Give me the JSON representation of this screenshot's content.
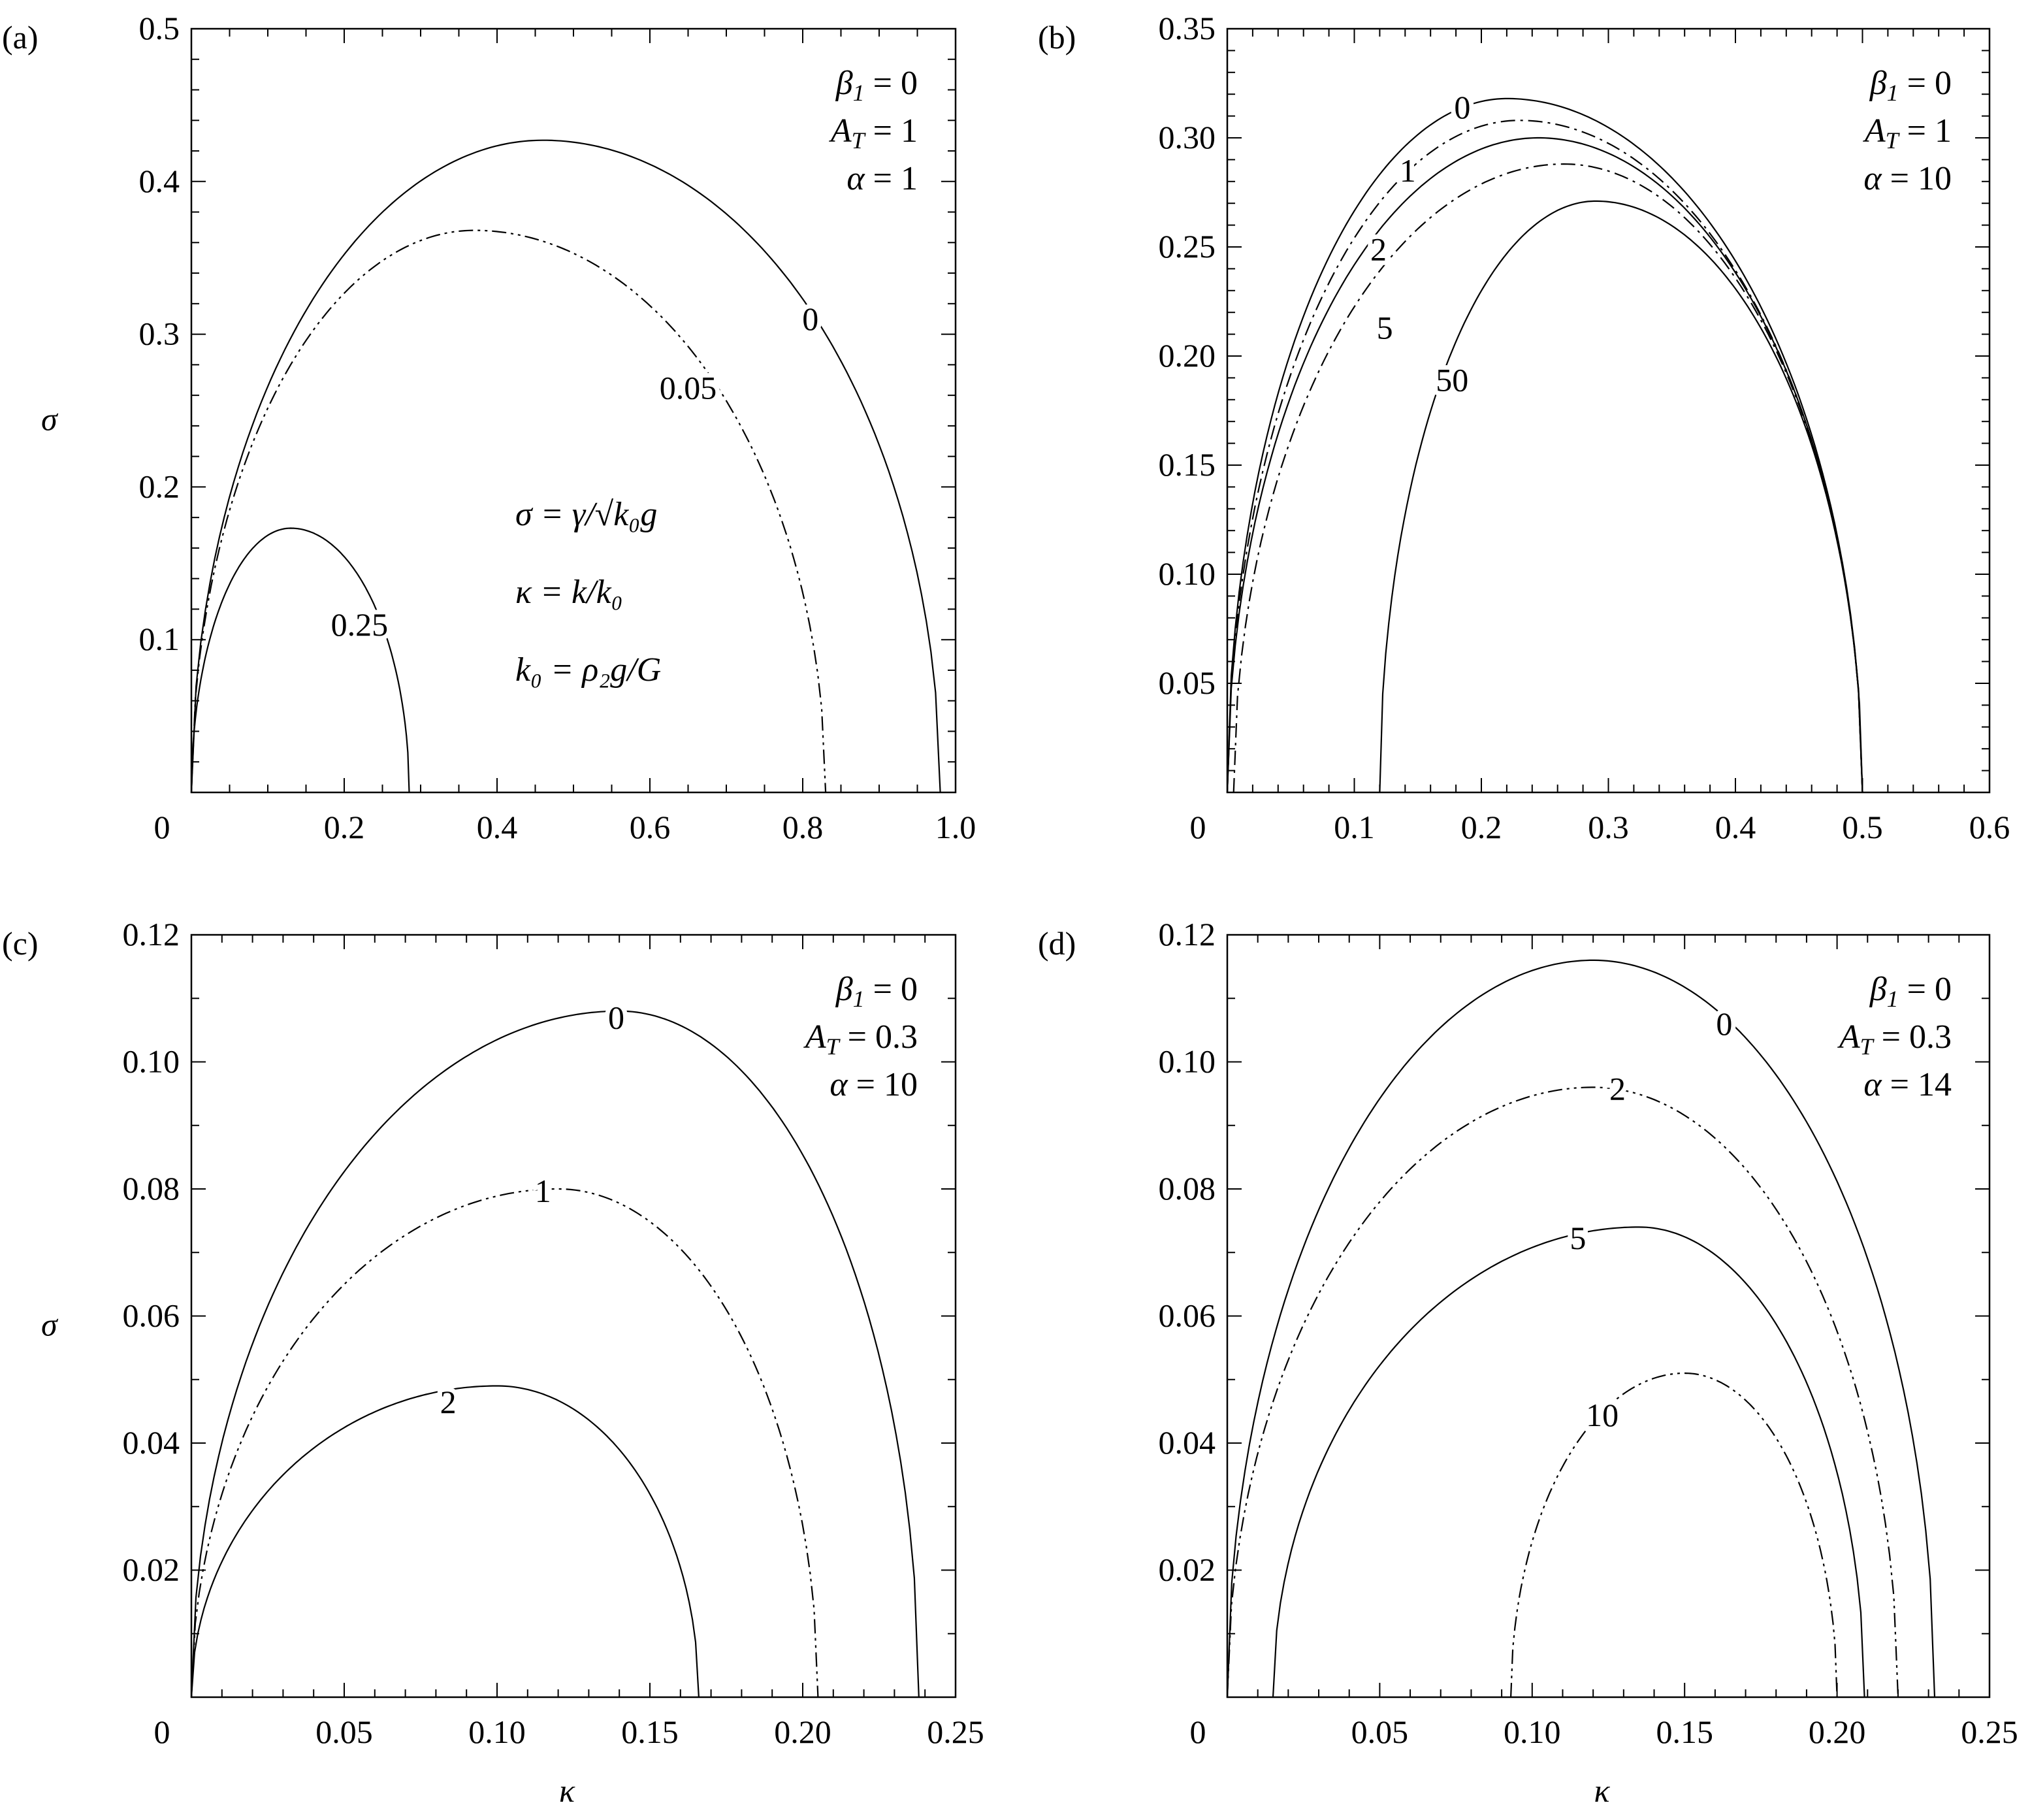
{
  "chart_data": [
    {
      "type": "line",
      "panel_label": "(a)",
      "xlabel": "",
      "ylabel": "σ",
      "xlim": [
        0,
        1.0
      ],
      "ylim": [
        0,
        0.5
      ],
      "xticks": [
        "0",
        "0.2",
        "0.4",
        "0.6",
        "0.8",
        "1.0"
      ],
      "xtick_values": [
        0,
        0.2,
        0.4,
        0.6,
        0.8,
        1.0
      ],
      "xminor": 0.05,
      "yticks": [
        "0.1",
        "0.2",
        "0.3",
        "0.4",
        "0.5"
      ],
      "ytick_values": [
        0.1,
        0.2,
        0.3,
        0.4,
        0.5
      ],
      "yminor": 0.02,
      "params": [
        {
          "sym": "β",
          "sub": "1",
          "rest": " = 0"
        },
        {
          "sym": "A",
          "sub": "T",
          "rest": " = 1"
        },
        {
          "sym": "α",
          "sub": "",
          "rest": " = 1"
        }
      ],
      "formulas": [
        "σ = γ/√k₀g",
        "κ = k/k₀",
        "k₀ = ρ₂g/G"
      ],
      "series": [
        {
          "name": "0",
          "style": "solid",
          "start": 0,
          "peak": [
            0.46,
            0.427
          ],
          "end": 0.98,
          "label_at": [
            0.81,
            0.31
          ]
        },
        {
          "name": "0.05",
          "style": "dashdotdot",
          "start": 0,
          "peak": [
            0.37,
            0.368
          ],
          "end": 0.83,
          "label_at": [
            0.65,
            0.265
          ]
        },
        {
          "name": "0.25",
          "style": "solid",
          "start": 0,
          "peak": [
            0.13,
            0.173
          ],
          "end": 0.285,
          "label_at": [
            0.22,
            0.11
          ]
        }
      ]
    },
    {
      "type": "line",
      "panel_label": "(b)",
      "xlabel": "",
      "ylabel": "",
      "xlim": [
        0,
        0.6
      ],
      "ylim": [
        0,
        0.35
      ],
      "xticks": [
        "0",
        "0.1",
        "0.2",
        "0.3",
        "0.4",
        "0.5",
        "0.6"
      ],
      "xtick_values": [
        0,
        0.1,
        0.2,
        0.3,
        0.4,
        0.5,
        0.6
      ],
      "xminor": 0.02,
      "yticks": [
        "0.05",
        "0.10",
        "0.15",
        "0.20",
        "0.25",
        "0.30",
        "0.35"
      ],
      "ytick_values": [
        0.05,
        0.1,
        0.15,
        0.2,
        0.25,
        0.3,
        0.35
      ],
      "yminor": 0.01,
      "params": [
        {
          "sym": "β",
          "sub": "1",
          "rest": " = 0"
        },
        {
          "sym": "A",
          "sub": "T",
          "rest": " = 1"
        },
        {
          "sym": "α",
          "sub": "",
          "rest": " = 10"
        }
      ],
      "formulas": [],
      "series": [
        {
          "name": "0",
          "style": "solid",
          "start": 0,
          "peak": [
            0.22,
            0.318
          ],
          "end": 0.5,
          "label_at": [
            0.185,
            0.314
          ]
        },
        {
          "name": "1",
          "style": "dashdot",
          "start": 0,
          "peak": [
            0.23,
            0.308
          ],
          "end": 0.5,
          "label_at": [
            0.142,
            0.285
          ]
        },
        {
          "name": "2",
          "style": "solid",
          "start": 0,
          "peak": [
            0.245,
            0.3
          ],
          "end": 0.5,
          "label_at": [
            0.119,
            0.249
          ]
        },
        {
          "name": "5",
          "style": "dashdot",
          "start": 0.005,
          "peak": [
            0.265,
            0.288
          ],
          "end": 0.5,
          "label_at": [
            0.124,
            0.213
          ]
        },
        {
          "name": "50",
          "style": "solid",
          "start": 0.12,
          "peak": [
            0.29,
            0.271
          ],
          "end": 0.5,
          "label_at": [
            0.177,
            0.189
          ]
        }
      ]
    },
    {
      "type": "line",
      "panel_label": "(c)",
      "xlabel": "κ",
      "ylabel": "σ",
      "xlim": [
        0,
        0.25
      ],
      "ylim": [
        0,
        0.12
      ],
      "xticks": [
        "0",
        "0.05",
        "0.10",
        "0.15",
        "0.20",
        "0.25"
      ],
      "xtick_values": [
        0,
        0.05,
        0.1,
        0.15,
        0.2,
        0.25
      ],
      "xminor": 0.01,
      "yticks": [
        "0.02",
        "0.04",
        "0.06",
        "0.08",
        "0.10",
        "0.12"
      ],
      "ytick_values": [
        0.02,
        0.04,
        0.06,
        0.08,
        0.1,
        0.12
      ],
      "yminor": 0.01,
      "params": [
        {
          "sym": "β",
          "sub": "1",
          "rest": " = 0"
        },
        {
          "sym": "A",
          "sub": "T",
          "rest": " = 0.3"
        },
        {
          "sym": "α",
          "sub": "",
          "rest": " = 10"
        }
      ],
      "formulas": [],
      "series": [
        {
          "name": "0",
          "style": "solid",
          "start": 0,
          "peak": [
            0.14,
            0.108
          ],
          "end": 0.238,
          "label_at": [
            0.139,
            0.107
          ]
        },
        {
          "name": "1",
          "style": "dashdotdot",
          "start": 0,
          "peak": [
            0.12,
            0.08
          ],
          "end": 0.205,
          "label_at": [
            0.115,
            0.0797
          ]
        },
        {
          "name": "2",
          "style": "solid",
          "start": 0,
          "peak": [
            0.1,
            0.049
          ],
          "end": 0.166,
          "label_at": [
            0.084,
            0.0465
          ]
        }
      ]
    },
    {
      "type": "line",
      "panel_label": "(d)",
      "xlabel": "κ",
      "ylabel": "",
      "xlim": [
        0,
        0.25
      ],
      "ylim": [
        0,
        0.12
      ],
      "xticks": [
        "0",
        "0.05",
        "0.10",
        "0.15",
        "0.20",
        "0.25"
      ],
      "xtick_values": [
        0,
        0.05,
        0.1,
        0.15,
        0.2,
        0.25
      ],
      "xminor": 0.01,
      "yticks": [
        "0.02",
        "0.04",
        "0.06",
        "0.08",
        "0.10",
        "0.12"
      ],
      "ytick_values": [
        0.02,
        0.04,
        0.06,
        0.08,
        0.1,
        0.12
      ],
      "yminor": 0.01,
      "params": [
        {
          "sym": "β",
          "sub": "1",
          "rest": " = 0"
        },
        {
          "sym": "A",
          "sub": "T",
          "rest": " = 0.3"
        },
        {
          "sym": "α",
          "sub": "",
          "rest": " = 14"
        }
      ],
      "formulas": [],
      "series": [
        {
          "name": "0",
          "style": "solid",
          "start": 0,
          "peak": [
            0.12,
            0.116
          ],
          "end": 0.232,
          "label_at": [
            0.163,
            0.106
          ]
        },
        {
          "name": "2",
          "style": "dashdotdot",
          "start": 0,
          "peak": [
            0.12,
            0.096
          ],
          "end": 0.22,
          "label_at": [
            0.128,
            0.0958
          ]
        },
        {
          "name": "5",
          "style": "solid",
          "start": 0.015,
          "peak": [
            0.135,
            0.074
          ],
          "end": 0.209,
          "label_at": [
            0.115,
            0.0723
          ]
        },
        {
          "name": "10",
          "style": "dashdotdot",
          "start": 0.093,
          "peak": [
            0.15,
            0.051
          ],
          "end": 0.2,
          "label_at": [
            0.123,
            0.0444
          ]
        }
      ]
    }
  ]
}
